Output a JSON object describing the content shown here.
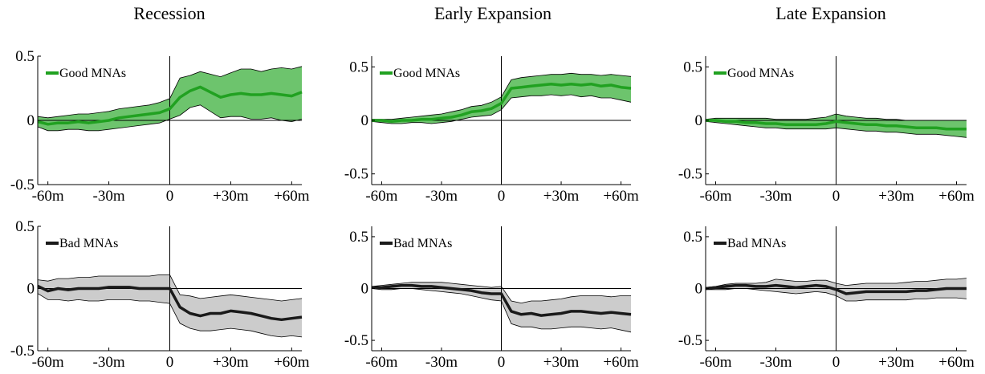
{
  "figure": {
    "column_titles": [
      "Recession",
      "Early Expansion",
      "Late Expansion"
    ]
  },
  "chart_data": [
    {
      "type": "line",
      "panel": "Recession / Good MNAs",
      "title": "Recession",
      "legend": "Good MNAs",
      "legend_position": "top-left",
      "x_ticks": [
        "-60m",
        "-30m",
        "0",
        "+30m",
        "+60m"
      ],
      "x_tick_values": [
        -60,
        -30,
        0,
        30,
        60
      ],
      "y_ticks": [
        "0.5",
        "0",
        "-0.5"
      ],
      "y_tick_values": [
        0.5,
        0,
        -0.5
      ],
      "xlim": [
        -65,
        65
      ],
      "ylim": [
        -0.5,
        0.5
      ],
      "x": [
        -65,
        -60,
        -55,
        -50,
        -45,
        -40,
        -35,
        -30,
        -25,
        -20,
        -15,
        -10,
        -5,
        0,
        5,
        10,
        15,
        20,
        25,
        30,
        35,
        40,
        45,
        50,
        55,
        60,
        65
      ],
      "series": [
        {
          "name": "Good MNAs",
          "color": "#21a121",
          "band_color": "#6dc46d",
          "values": [
            -0.01,
            -0.03,
            -0.02,
            -0.02,
            -0.01,
            -0.02,
            -0.01,
            0.0,
            0.02,
            0.03,
            0.04,
            0.05,
            0.06,
            0.09,
            0.18,
            0.23,
            0.26,
            0.22,
            0.18,
            0.2,
            0.21,
            0.2,
            0.2,
            0.21,
            0.2,
            0.19,
            0.22
          ],
          "upper": [
            0.03,
            0.02,
            0.03,
            0.04,
            0.05,
            0.05,
            0.06,
            0.07,
            0.09,
            0.1,
            0.11,
            0.12,
            0.14,
            0.17,
            0.33,
            0.35,
            0.38,
            0.36,
            0.34,
            0.37,
            0.4,
            0.4,
            0.38,
            0.4,
            0.41,
            0.4,
            0.42
          ],
          "lower": [
            -0.05,
            -0.08,
            -0.08,
            -0.07,
            -0.07,
            -0.08,
            -0.08,
            -0.07,
            -0.06,
            -0.05,
            -0.04,
            -0.03,
            -0.02,
            0.01,
            0.04,
            0.1,
            0.12,
            0.07,
            0.02,
            0.03,
            0.03,
            0.01,
            0.01,
            0.02,
            0.0,
            -0.01,
            0.01
          ]
        }
      ]
    },
    {
      "type": "line",
      "panel": "Early Expansion / Good MNAs",
      "title": "Early Expansion",
      "legend": "Good MNAs",
      "legend_position": "top-left",
      "x_ticks": [
        "-60m",
        "-30m",
        "0",
        "+30m",
        "+60m"
      ],
      "x_tick_values": [
        -60,
        -30,
        0,
        30,
        60
      ],
      "y_ticks": [
        "0.5",
        "0",
        "-0.5"
      ],
      "y_tick_values": [
        0.5,
        0,
        -0.5
      ],
      "xlim": [
        -65,
        65
      ],
      "ylim": [
        -0.6,
        0.6
      ],
      "x": [
        -65,
        -60,
        -55,
        -50,
        -45,
        -40,
        -35,
        -30,
        -25,
        -20,
        -15,
        -10,
        -5,
        0,
        5,
        10,
        15,
        20,
        25,
        30,
        35,
        40,
        45,
        50,
        55,
        60,
        65
      ],
      "series": [
        {
          "name": "Good MNAs",
          "color": "#21a121",
          "band_color": "#6dc46d",
          "values": [
            0.0,
            0.0,
            -0.01,
            0.0,
            0.0,
            0.01,
            0.01,
            0.02,
            0.03,
            0.05,
            0.08,
            0.09,
            0.11,
            0.16,
            0.3,
            0.31,
            0.32,
            0.33,
            0.34,
            0.33,
            0.34,
            0.33,
            0.34,
            0.32,
            0.33,
            0.31,
            0.3
          ],
          "upper": [
            0.01,
            0.01,
            0.01,
            0.02,
            0.03,
            0.04,
            0.05,
            0.06,
            0.08,
            0.1,
            0.13,
            0.14,
            0.17,
            0.22,
            0.38,
            0.4,
            0.41,
            0.42,
            0.43,
            0.43,
            0.44,
            0.43,
            0.43,
            0.42,
            0.43,
            0.42,
            0.41
          ],
          "lower": [
            -0.01,
            -0.02,
            -0.03,
            -0.03,
            -0.02,
            -0.02,
            -0.03,
            -0.02,
            -0.01,
            0.01,
            0.03,
            0.04,
            0.05,
            0.1,
            0.21,
            0.22,
            0.23,
            0.23,
            0.24,
            0.23,
            0.24,
            0.22,
            0.23,
            0.21,
            0.21,
            0.19,
            0.17
          ]
        }
      ]
    },
    {
      "type": "line",
      "panel": "Late Expansion / Good MNAs",
      "title": "Late Expansion",
      "legend": "Good MNAs",
      "legend_position": "top-left",
      "x_ticks": [
        "-60m",
        "-30m",
        "0",
        "+30m",
        "+60m"
      ],
      "x_tick_values": [
        -60,
        -30,
        0,
        30,
        60
      ],
      "y_ticks": [
        "0.5",
        "0",
        "-0.5"
      ],
      "y_tick_values": [
        0.5,
        0,
        -0.5
      ],
      "xlim": [
        -65,
        65
      ],
      "ylim": [
        -0.6,
        0.6
      ],
      "x": [
        -65,
        -60,
        -55,
        -50,
        -45,
        -40,
        -35,
        -30,
        -25,
        -20,
        -15,
        -10,
        -5,
        0,
        5,
        10,
        15,
        20,
        25,
        30,
        35,
        40,
        45,
        50,
        55,
        60,
        65
      ],
      "series": [
        {
          "name": "Good MNAs",
          "color": "#21a121",
          "band_color": "#6dc46d",
          "values": [
            0.0,
            0.0,
            -0.01,
            -0.01,
            -0.02,
            -0.02,
            -0.03,
            -0.03,
            -0.04,
            -0.04,
            -0.04,
            -0.04,
            -0.03,
            -0.01,
            -0.02,
            -0.03,
            -0.04,
            -0.04,
            -0.05,
            -0.05,
            -0.06,
            -0.07,
            -0.07,
            -0.07,
            -0.08,
            -0.08,
            -0.08
          ],
          "upper": [
            0.01,
            0.02,
            0.02,
            0.02,
            0.02,
            0.02,
            0.02,
            0.01,
            0.01,
            0.01,
            0.01,
            0.02,
            0.03,
            0.06,
            0.04,
            0.03,
            0.02,
            0.02,
            0.01,
            0.01,
            0.0,
            0.0,
            0.0,
            0.0,
            0.0,
            0.0,
            0.0
          ],
          "lower": [
            -0.01,
            -0.02,
            -0.03,
            -0.04,
            -0.05,
            -0.06,
            -0.07,
            -0.07,
            -0.08,
            -0.08,
            -0.08,
            -0.08,
            -0.08,
            -0.07,
            -0.08,
            -0.09,
            -0.1,
            -0.1,
            -0.11,
            -0.11,
            -0.12,
            -0.13,
            -0.13,
            -0.13,
            -0.14,
            -0.15,
            -0.16
          ]
        }
      ]
    },
    {
      "type": "line",
      "panel": "Recession / Bad MNAs",
      "legend": "Bad MNAs",
      "legend_position": "top-left",
      "x_ticks": [
        "-60m",
        "-30m",
        "0",
        "+30m",
        "+60m"
      ],
      "x_tick_values": [
        -60,
        -30,
        0,
        30,
        60
      ],
      "y_ticks": [
        "0.5",
        "0",
        "-0.5"
      ],
      "y_tick_values": [
        0.5,
        0,
        -0.5
      ],
      "xlim": [
        -65,
        65
      ],
      "ylim": [
        -0.5,
        0.5
      ],
      "x": [
        -65,
        -60,
        -55,
        -50,
        -45,
        -40,
        -35,
        -30,
        -25,
        -20,
        -15,
        -10,
        -5,
        0,
        5,
        10,
        15,
        20,
        25,
        30,
        35,
        40,
        45,
        50,
        55,
        60,
        65
      ],
      "series": [
        {
          "name": "Bad MNAs",
          "color": "#1a1a1a",
          "band_color": "#cccccc",
          "values": [
            0.02,
            -0.02,
            0.0,
            -0.01,
            0.0,
            0.0,
            0.0,
            0.01,
            0.01,
            0.01,
            0.0,
            0.0,
            0.0,
            0.0,
            -0.15,
            -0.2,
            -0.22,
            -0.2,
            -0.2,
            -0.18,
            -0.19,
            -0.2,
            -0.22,
            -0.24,
            -0.25,
            -0.24,
            -0.23
          ],
          "upper": [
            0.07,
            0.06,
            0.08,
            0.08,
            0.09,
            0.09,
            0.1,
            0.1,
            0.1,
            0.1,
            0.1,
            0.1,
            0.11,
            0.11,
            -0.05,
            -0.06,
            -0.08,
            -0.07,
            -0.06,
            -0.05,
            -0.06,
            -0.07,
            -0.08,
            -0.09,
            -0.1,
            -0.09,
            -0.08
          ],
          "lower": [
            -0.04,
            -0.09,
            -0.09,
            -0.1,
            -0.09,
            -0.1,
            -0.1,
            -0.09,
            -0.09,
            -0.09,
            -0.1,
            -0.1,
            -0.11,
            -0.12,
            -0.28,
            -0.32,
            -0.34,
            -0.34,
            -0.33,
            -0.32,
            -0.33,
            -0.34,
            -0.36,
            -0.38,
            -0.39,
            -0.38,
            -0.39
          ]
        }
      ]
    },
    {
      "type": "line",
      "panel": "Early Expansion / Bad MNAs",
      "legend": "Bad MNAs",
      "legend_position": "top-left",
      "x_ticks": [
        "-60m",
        "-30m",
        "0",
        "+30m",
        "+60m"
      ],
      "x_tick_values": [
        -60,
        -30,
        0,
        30,
        60
      ],
      "y_ticks": [
        "0.5",
        "0",
        "-0.5"
      ],
      "y_tick_values": [
        0.5,
        0,
        -0.5
      ],
      "xlim": [
        -65,
        65
      ],
      "ylim": [
        -0.6,
        0.6
      ],
      "x": [
        -65,
        -60,
        -55,
        -50,
        -45,
        -40,
        -35,
        -30,
        -25,
        -20,
        -15,
        -10,
        -5,
        0,
        5,
        10,
        15,
        20,
        25,
        30,
        35,
        40,
        45,
        50,
        55,
        60,
        65
      ],
      "series": [
        {
          "name": "Bad MNAs",
          "color": "#1a1a1a",
          "band_color": "#cccccc",
          "values": [
            0.01,
            0.01,
            0.02,
            0.03,
            0.03,
            0.02,
            0.02,
            0.01,
            0.0,
            -0.01,
            -0.02,
            -0.04,
            -0.05,
            -0.05,
            -0.22,
            -0.25,
            -0.24,
            -0.26,
            -0.25,
            -0.24,
            -0.22,
            -0.22,
            -0.23,
            -0.24,
            -0.23,
            -0.24,
            -0.25
          ],
          "upper": [
            0.02,
            0.03,
            0.04,
            0.05,
            0.06,
            0.06,
            0.06,
            0.06,
            0.05,
            0.04,
            0.03,
            0.02,
            0.01,
            0.02,
            -0.12,
            -0.14,
            -0.12,
            -0.12,
            -0.11,
            -0.1,
            -0.08,
            -0.07,
            -0.07,
            -0.07,
            -0.08,
            -0.07,
            -0.07
          ],
          "lower": [
            0.0,
            -0.01,
            -0.01,
            0.0,
            0.0,
            -0.01,
            -0.02,
            -0.03,
            -0.04,
            -0.05,
            -0.07,
            -0.09,
            -0.11,
            -0.12,
            -0.34,
            -0.37,
            -0.37,
            -0.39,
            -0.39,
            -0.38,
            -0.37,
            -0.37,
            -0.38,
            -0.39,
            -0.38,
            -0.4,
            -0.42
          ]
        }
      ]
    },
    {
      "type": "line",
      "panel": "Late Expansion / Bad MNAs",
      "legend": "Bad MNAs",
      "legend_position": "top-left",
      "x_ticks": [
        "-60m",
        "-30m",
        "0",
        "+30m",
        "+60m"
      ],
      "x_tick_values": [
        -60,
        -30,
        0,
        30,
        60
      ],
      "y_ticks": [
        "0.5",
        "0",
        "-0.5"
      ],
      "y_tick_values": [
        0.5,
        0,
        -0.5
      ],
      "xlim": [
        -65,
        65
      ],
      "ylim": [
        -0.6,
        0.6
      ],
      "x": [
        -65,
        -60,
        -55,
        -50,
        -45,
        -40,
        -35,
        -30,
        -25,
        -20,
        -15,
        -10,
        -5,
        0,
        5,
        10,
        15,
        20,
        25,
        30,
        35,
        40,
        45,
        50,
        55,
        60,
        65
      ],
      "series": [
        {
          "name": "Bad MNAs",
          "color": "#1a1a1a",
          "band_color": "#cccccc",
          "values": [
            0.0,
            0.01,
            0.02,
            0.03,
            0.03,
            0.02,
            0.02,
            0.03,
            0.02,
            0.01,
            0.02,
            0.03,
            0.02,
            -0.01,
            -0.05,
            -0.04,
            -0.03,
            -0.03,
            -0.03,
            -0.03,
            -0.03,
            -0.02,
            -0.02,
            -0.01,
            0.0,
            0.0,
            0.0
          ],
          "upper": [
            0.01,
            0.02,
            0.04,
            0.05,
            0.05,
            0.05,
            0.06,
            0.09,
            0.08,
            0.07,
            0.07,
            0.08,
            0.08,
            0.05,
            0.03,
            0.04,
            0.05,
            0.05,
            0.05,
            0.05,
            0.06,
            0.07,
            0.07,
            0.08,
            0.09,
            0.09,
            0.1
          ],
          "lower": [
            -0.01,
            -0.01,
            -0.01,
            0.0,
            0.0,
            -0.01,
            -0.02,
            -0.03,
            -0.04,
            -0.05,
            -0.04,
            -0.03,
            -0.04,
            -0.07,
            -0.12,
            -0.12,
            -0.11,
            -0.11,
            -0.11,
            -0.11,
            -0.11,
            -0.1,
            -0.1,
            -0.09,
            -0.09,
            -0.09,
            -0.1
          ]
        }
      ]
    }
  ]
}
